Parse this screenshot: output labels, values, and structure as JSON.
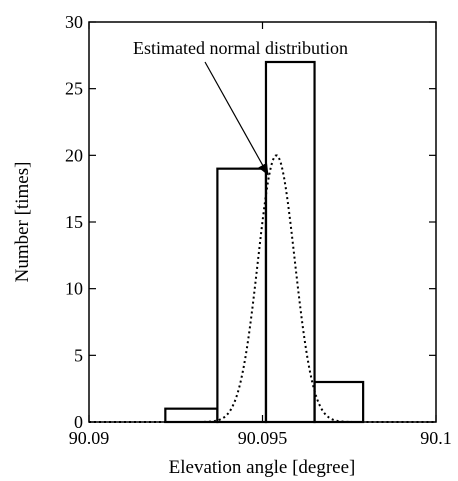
{
  "chart_data": {
    "type": "bar",
    "xlabel": "Elevation angle [degree]",
    "ylabel": "Number [times]",
    "xlim": [
      90.09,
      90.1
    ],
    "ylim": [
      0,
      30
    ],
    "x_ticks": [
      {
        "value": 90.09,
        "label": "90.09"
      },
      {
        "value": 90.095,
        "label": "90.095"
      },
      {
        "value": 90.1,
        "label": "90.1"
      }
    ],
    "y_ticks": [
      {
        "value": 0,
        "label": "0"
      },
      {
        "value": 5,
        "label": "5"
      },
      {
        "value": 10,
        "label": "10"
      },
      {
        "value": 15,
        "label": "15"
      },
      {
        "value": 20,
        "label": "20"
      },
      {
        "value": 25,
        "label": "25"
      },
      {
        "value": 30,
        "label": "30"
      }
    ],
    "bins": [
      {
        "x0": 90.0922,
        "x1": 90.0937,
        "count": 1
      },
      {
        "x0": 90.0937,
        "x1": 90.0951,
        "count": 19
      },
      {
        "x0": 90.0951,
        "x1": 90.0965,
        "count": 27
      },
      {
        "x0": 90.0965,
        "x1": 90.0979,
        "count": 3
      }
    ],
    "fit_curve": {
      "type": "normal",
      "mean": 90.0954,
      "sd": 0.00053,
      "peak": 20,
      "style": "dotted"
    },
    "annotation": {
      "text": "Estimated normal distribution",
      "points_to": {
        "x": 90.0951,
        "y": 19
      }
    },
    "grid": false
  }
}
